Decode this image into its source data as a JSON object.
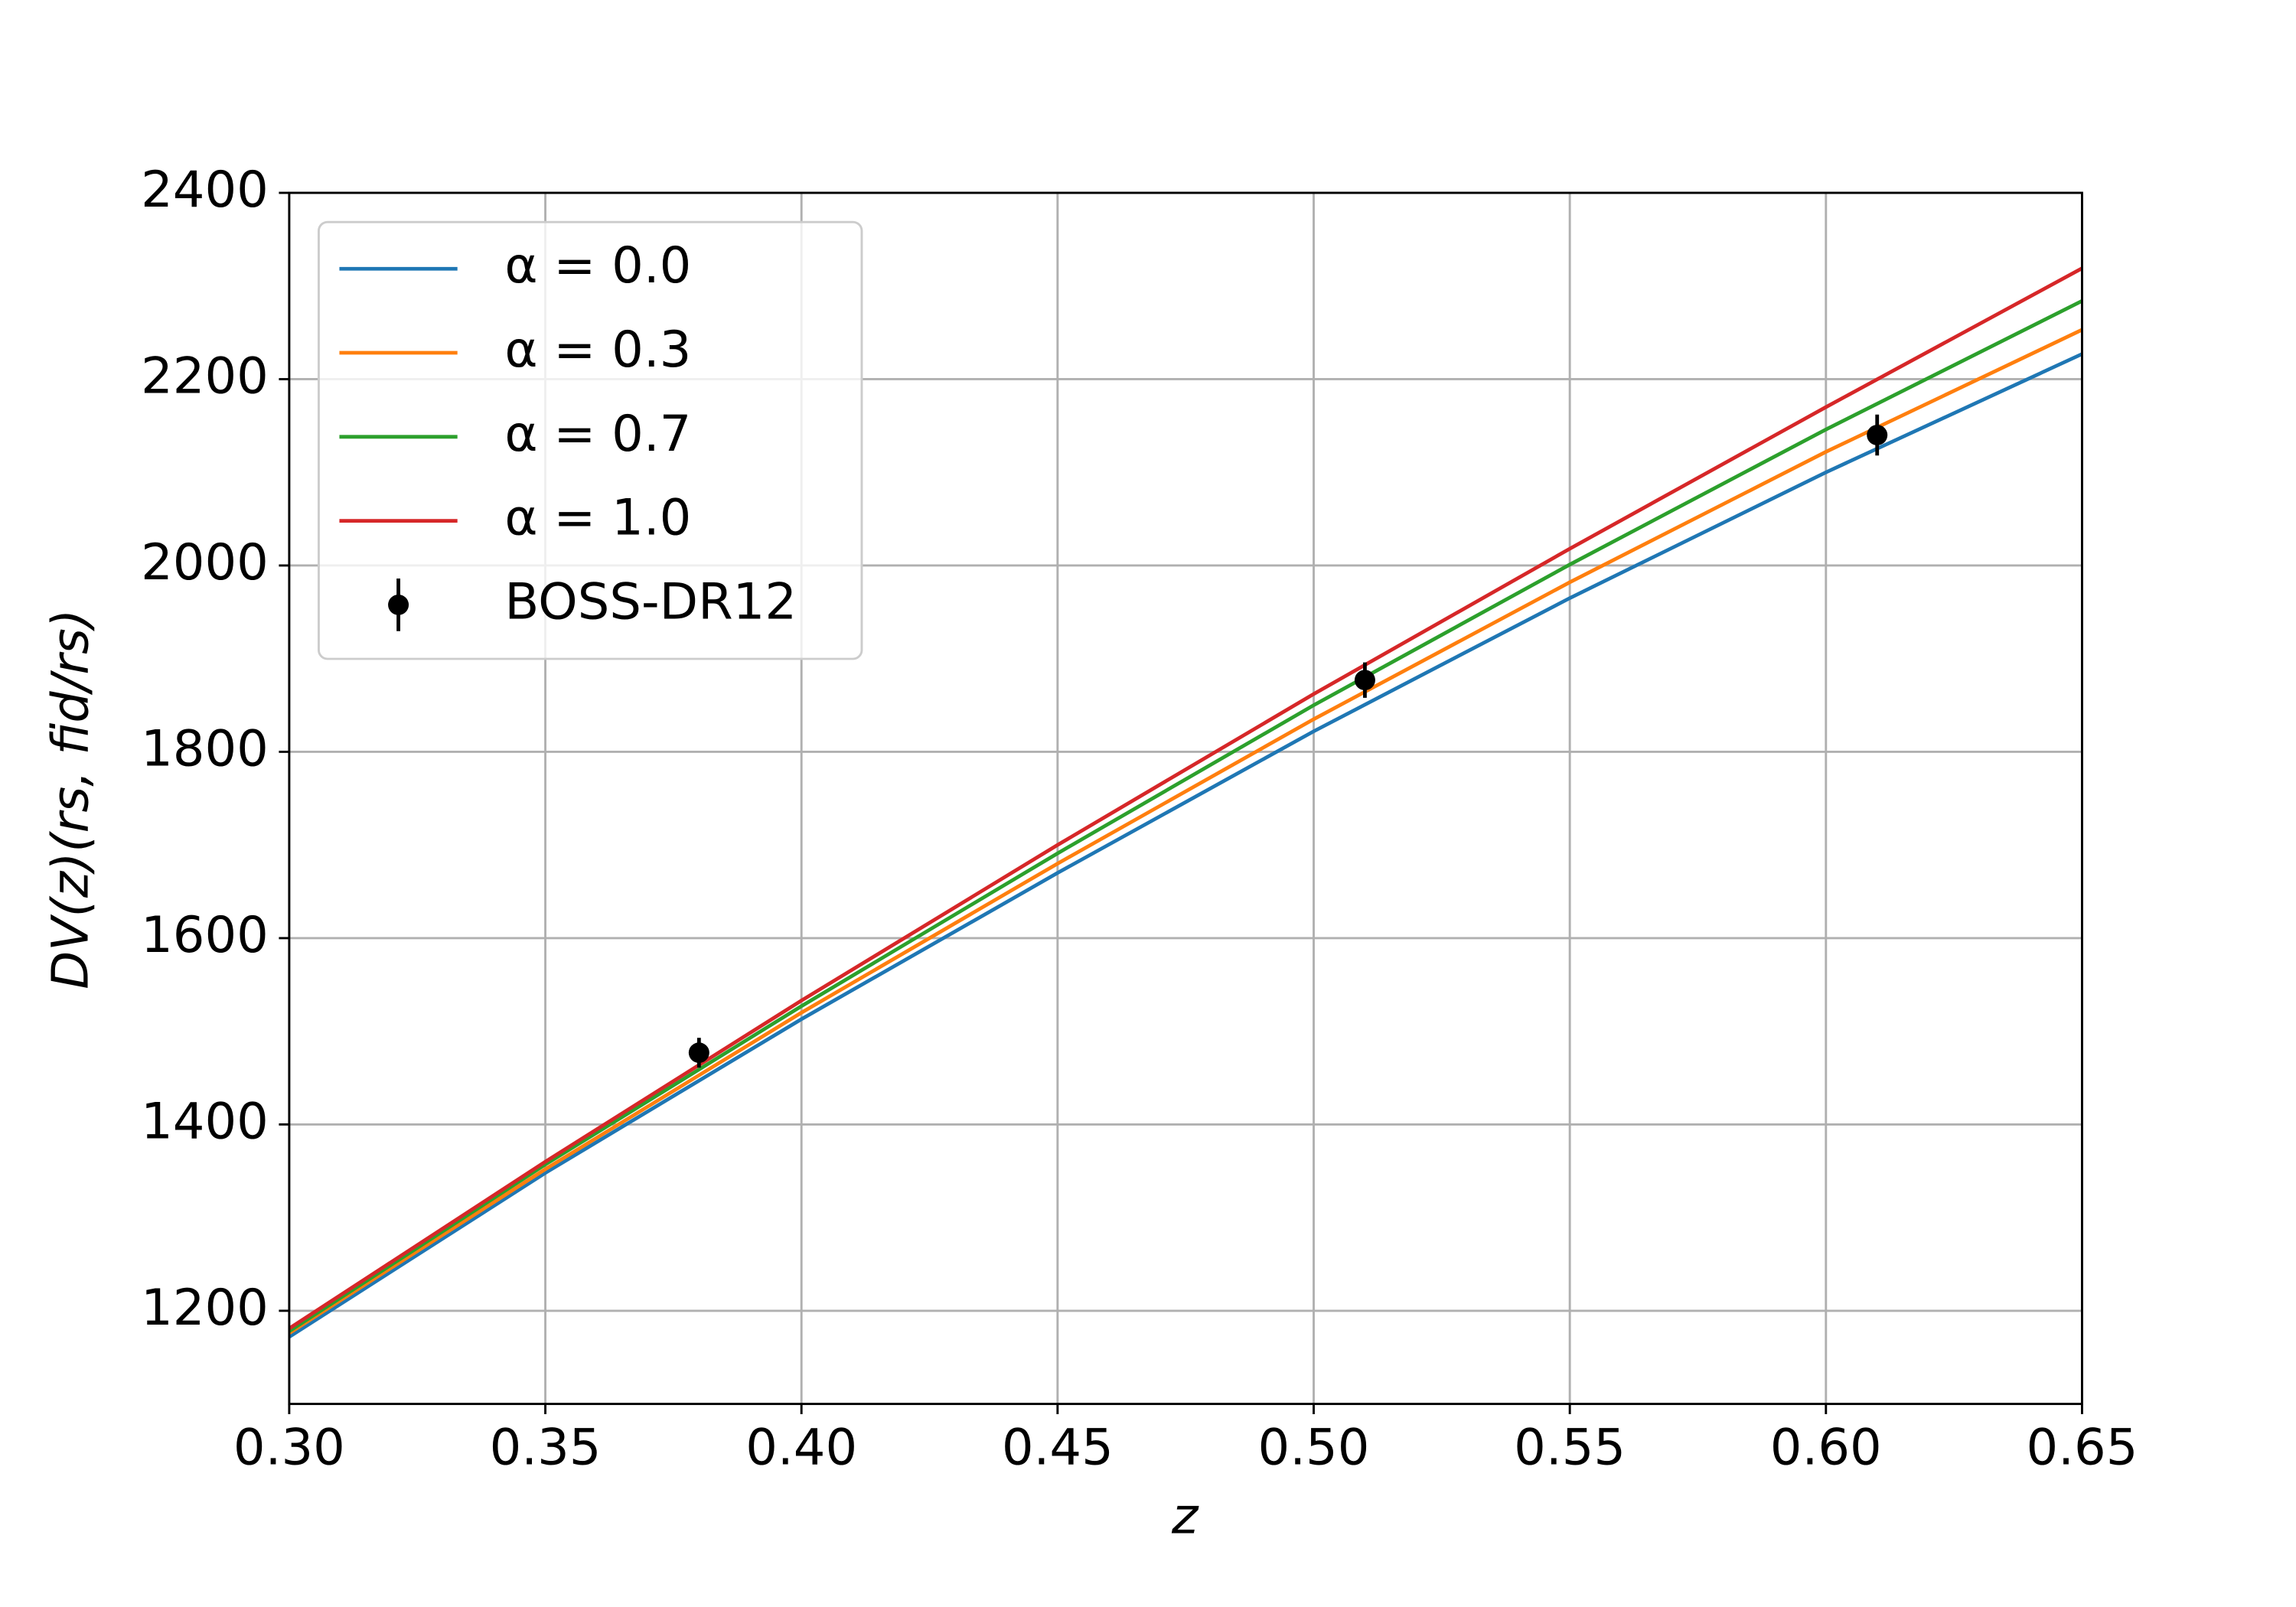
{
  "chart_data": {
    "type": "line",
    "xlabel": "z",
    "ylabel": "DV(z)(rs, fid/rs)",
    "x": [
      0.3,
      0.35,
      0.4,
      0.45,
      0.5,
      0.55,
      0.6,
      0.65
    ],
    "series": [
      {
        "name": "α = 0.0",
        "color": "#1f77b4",
        "values": [
          1172,
          1348,
          1513,
          1670,
          1822,
          1965,
          2100,
          2227
        ]
      },
      {
        "name": "α = 0.3",
        "color": "#ff7f0e",
        "values": [
          1176,
          1352,
          1520,
          1680,
          1835,
          1982,
          2122,
          2253
        ]
      },
      {
        "name": "α = 0.7",
        "color": "#2ca02c",
        "values": [
          1178,
          1357,
          1527,
          1691,
          1850,
          2001,
          2146,
          2284
        ]
      },
      {
        "name": "α = 1.0",
        "color": "#d62728",
        "values": [
          1181,
          1360,
          1533,
          1700,
          1862,
          2018,
          2170,
          2319
        ]
      }
    ],
    "points": {
      "name": "BOSS-DR12",
      "color": "#000000",
      "x": [
        0.38,
        0.51,
        0.61
      ],
      "values": [
        1477,
        1877,
        2140
      ],
      "errors": [
        16,
        19,
        22
      ]
    },
    "xlim": [
      0.3,
      0.65
    ],
    "xticks": [
      {
        "value": 0.3,
        "label": "0.30"
      },
      {
        "value": 0.35,
        "label": "0.35"
      },
      {
        "value": 0.4,
        "label": "0.40"
      },
      {
        "value": 0.45,
        "label": "0.45"
      },
      {
        "value": 0.5,
        "label": "0.50"
      },
      {
        "value": 0.55,
        "label": "0.55"
      },
      {
        "value": 0.6,
        "label": "0.60"
      },
      {
        "value": 0.65,
        "label": "0.65"
      }
    ],
    "ylim": [
      1100,
      2400
    ],
    "yticks": [
      1200,
      1400,
      1600,
      1800,
      2000,
      2200,
      2400
    ],
    "grid": true,
    "legend": "upper left"
  }
}
